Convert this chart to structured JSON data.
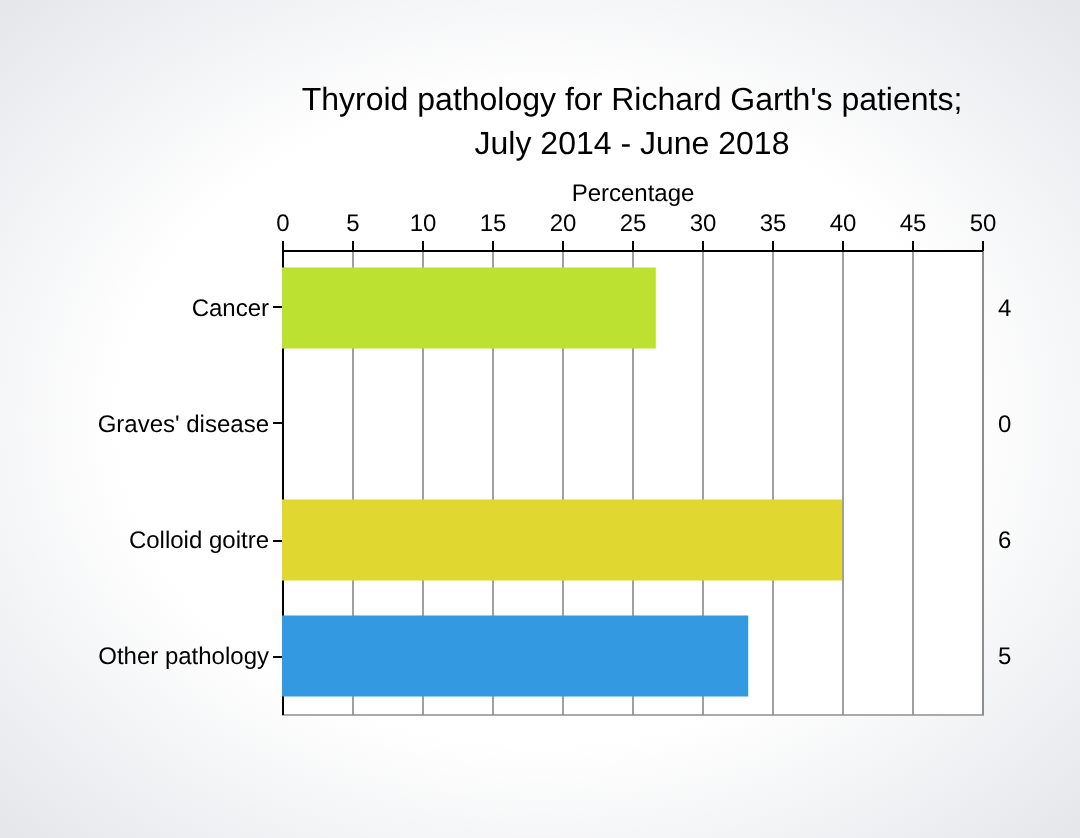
{
  "chart_data": {
    "type": "bar",
    "orientation": "horizontal",
    "title": "Thyroid pathology for Richard Garth's patients;",
    "subtitle": "July 2014 - June 2018",
    "xlabel": "Percentage",
    "categories": [
      "Cancer",
      "Graves' disease",
      "Colloid goitre",
      "Other pathology"
    ],
    "values": [
      26.7,
      0,
      40,
      33.3
    ],
    "colors": [
      "#bde130",
      "#e8742a",
      "#e0d830",
      "#3399e0"
    ],
    "annotations": [
      "4",
      "0",
      "6",
      "5"
    ],
    "xlim": [
      0,
      50
    ],
    "xticks": [
      0,
      5,
      10,
      15,
      20,
      25,
      30,
      35,
      40,
      45,
      50
    ],
    "grid": "x"
  }
}
